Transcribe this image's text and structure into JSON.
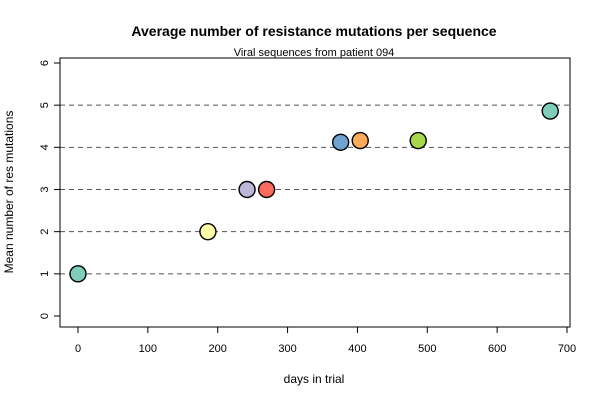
{
  "chart_data": {
    "type": "scatter",
    "title": "Average number of resistance mutations per sequence",
    "subtitle": "Viral sequences from patient 094",
    "xlabel": "days in trial",
    "ylabel": "Mean number of res mutations",
    "xlim": [
      0,
      700
    ],
    "ylim": [
      0,
      6
    ],
    "x_ticks": [
      0,
      100,
      200,
      300,
      400,
      500,
      600,
      700
    ],
    "y_ticks": [
      0,
      1,
      2,
      3,
      4,
      5,
      6
    ],
    "grid": "dashed horizontal lines at y = 1, 2, 3, 4, 5",
    "grid_lines_y": [
      1,
      2,
      3,
      4,
      5
    ],
    "points": [
      {
        "x": 0,
        "y": 1.0,
        "color": "#7fcdbb"
      },
      {
        "x": 186,
        "y": 2.0,
        "color": "#ffffa8"
      },
      {
        "x": 242,
        "y": 3.0,
        "color": "#bcb7d8"
      },
      {
        "x": 270,
        "y": 3.0,
        "color": "#fb6b5e"
      },
      {
        "x": 376,
        "y": 4.12,
        "color": "#6fa3d0"
      },
      {
        "x": 404,
        "y": 4.16,
        "color": "#fdab5a"
      },
      {
        "x": 487,
        "y": 4.16,
        "color": "#a8d84a"
      },
      {
        "x": 676,
        "y": 4.86,
        "color": "#7fcdbb"
      }
    ]
  }
}
